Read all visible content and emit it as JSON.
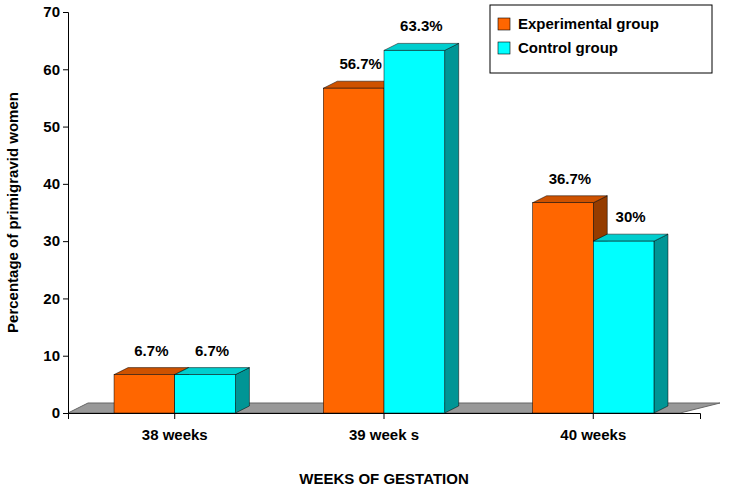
{
  "chart_data": {
    "type": "bar",
    "x_label": "WEEKS OF GESTATION",
    "y_label": "Percentage of primigravid women",
    "categories": [
      "38 weeks",
      "39 week s",
      "40 weeks"
    ],
    "series": [
      {
        "name": "Experimental group",
        "color": "#ff6600",
        "values": [
          6.7,
          56.7,
          36.7
        ],
        "value_labels": [
          "6.7%",
          "56.7%",
          "36.7%"
        ]
      },
      {
        "name": "Control group",
        "color": "#00ffff",
        "values": [
          6.7,
          63.3,
          30
        ],
        "value_labels": [
          "6.7%",
          "63.3%",
          "30%"
        ]
      }
    ],
    "ylim": [
      0,
      70
    ],
    "yticks": [
      0,
      10,
      20,
      30,
      40,
      50,
      60,
      70
    ],
    "grid": false,
    "legend": "top-right",
    "data_labels": true
  }
}
